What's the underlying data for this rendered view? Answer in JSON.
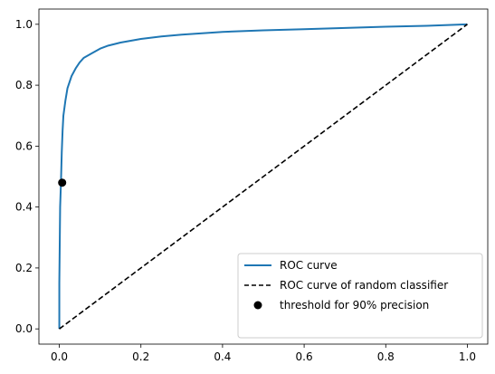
{
  "chart_data": {
    "type": "line",
    "title": "",
    "xlabel": "",
    "ylabel": "",
    "xlim": [
      -0.05,
      1.05
    ],
    "ylim": [
      -0.05,
      1.05
    ],
    "xticks": [
      "0.0",
      "0.2",
      "0.4",
      "0.6",
      "0.8",
      "1.0"
    ],
    "yticks": [
      "0.0",
      "0.2",
      "0.4",
      "0.6",
      "0.8",
      "1.0"
    ],
    "grid": false,
    "legend_position": "bottom-right",
    "series": [
      {
        "name": "ROC curve",
        "style": "solid",
        "color": "#1f77b4",
        "x": [
          0.0,
          0.0,
          0.002,
          0.004,
          0.006,
          0.008,
          0.01,
          0.015,
          0.02,
          0.03,
          0.04,
          0.05,
          0.06,
          0.08,
          0.1,
          0.12,
          0.15,
          0.2,
          0.25,
          0.3,
          0.4,
          0.5,
          0.6,
          0.7,
          0.8,
          0.9,
          1.0
        ],
        "y": [
          0.0,
          0.15,
          0.4,
          0.48,
          0.58,
          0.65,
          0.7,
          0.75,
          0.79,
          0.83,
          0.855,
          0.875,
          0.89,
          0.905,
          0.92,
          0.93,
          0.94,
          0.952,
          0.96,
          0.966,
          0.975,
          0.98,
          0.984,
          0.988,
          0.992,
          0.995,
          1.0
        ]
      },
      {
        "name": "ROC curve of random classifier",
        "style": "dashed",
        "color": "#000000",
        "x": [
          0.0,
          1.0
        ],
        "y": [
          0.0,
          1.0
        ]
      },
      {
        "name": "threshold for 90% precision",
        "style": "marker",
        "color": "#000000",
        "x": [
          0.007
        ],
        "y": [
          0.48
        ]
      }
    ]
  }
}
